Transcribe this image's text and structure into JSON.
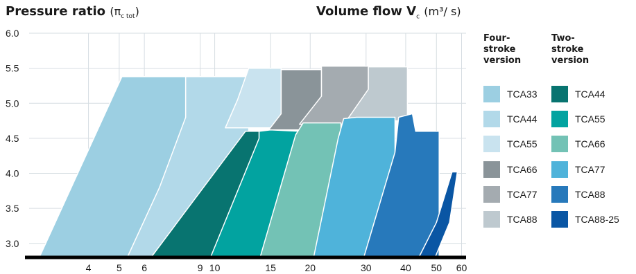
{
  "titles": {
    "left_main": "Pressure ratio",
    "left_paren_open": "(π",
    "left_sub": "c tot",
    "left_paren_close": ")",
    "right_main": "Volume flow V",
    "right_sub": "c",
    "right_unit": "(m³/ s)"
  },
  "legend": {
    "four_stroke_header": "Four-stroke version",
    "two_stroke_header": "Two-stroke version",
    "four_stroke": [
      {
        "label": "TCA33",
        "color": "#9ccfe2"
      },
      {
        "label": "TCA44",
        "color": "#b2d9e9"
      },
      {
        "label": "TCA55",
        "color": "#c9e3ef"
      },
      {
        "label": "TCA66",
        "color": "#8a9499"
      },
      {
        "label": "TCA77",
        "color": "#a4abb0"
      },
      {
        "label": "TCA88",
        "color": "#bec9cf"
      }
    ],
    "two_stroke": [
      {
        "label": "TCA44",
        "color": "#087470"
      },
      {
        "label": "TCA55",
        "color": "#02a3a0"
      },
      {
        "label": "TCA66",
        "color": "#73c2b5"
      },
      {
        "label": "TCA77",
        "color": "#4fb3da"
      },
      {
        "label": "TCA88",
        "color": "#2779bb"
      },
      {
        "label": "TCA88-25",
        "color": "#0a56a4"
      }
    ]
  },
  "chart_data": {
    "type": "area",
    "title": "Pressure ratio (πc tot) / Volume flow Vc (m³/ s)",
    "xlabel": "Volume flow Vc (m³/ s)",
    "ylabel": "Pressure ratio (πc tot)",
    "x_scale": "log",
    "xlim": [
      2.6,
      62
    ],
    "ylim": [
      2.8,
      6.0
    ],
    "x_ticks": [
      "4",
      "5",
      "6",
      "9",
      "10",
      "15",
      "20",
      "30",
      "40",
      "50",
      "60"
    ],
    "x_tick_values": [
      4,
      5,
      6,
      9,
      10,
      15,
      20,
      30,
      40,
      50,
      60
    ],
    "y_ticks": [
      "3.0",
      "3.5",
      "4.0",
      "4.5",
      "5.0",
      "5.5",
      "6.0"
    ],
    "y_tick_values": [
      3.0,
      3.5,
      4.0,
      4.5,
      5.0,
      5.5,
      6.0
    ],
    "grid": true,
    "legend_position": "right",
    "series": [
      {
        "name": "TCA33",
        "group": "four-stroke",
        "color": "#9ccfe2",
        "points": [
          [
            2.8,
            2.8
          ],
          [
            5.1,
            5.38
          ],
          [
            8.1,
            5.38
          ],
          [
            8.1,
            2.8
          ]
        ]
      },
      {
        "name": "TCA44",
        "group": "four-stroke",
        "color": "#b2d9e9",
        "points": [
          [
            5.3,
            2.8
          ],
          [
            6.7,
            3.8
          ],
          [
            8.1,
            4.8
          ],
          [
            8.1,
            5.38
          ],
          [
            12.8,
            5.38
          ],
          [
            12.8,
            2.8
          ]
        ]
      },
      {
        "name": "TCA55",
        "group": "four-stroke",
        "color": "#c9e3ef",
        "points": [
          [
            10.8,
            4.65
          ],
          [
            11.8,
            5.05
          ],
          [
            12.8,
            5.5
          ],
          [
            16.2,
            5.5
          ],
          [
            16.2,
            4.65
          ]
        ]
      },
      {
        "name": "TCA66",
        "group": "four-stroke",
        "color": "#8a9499",
        "points": [
          [
            14.8,
            4.62
          ],
          [
            16.2,
            4.85
          ],
          [
            16.2,
            5.48
          ],
          [
            21.7,
            5.48
          ],
          [
            21.7,
            4.62
          ]
        ]
      },
      {
        "name": "TCA77",
        "group": "four-stroke",
        "color": "#a4abb0",
        "points": [
          [
            18.5,
            4.7
          ],
          [
            21.7,
            5.1
          ],
          [
            21.7,
            5.53
          ],
          [
            30.5,
            5.53
          ],
          [
            30.5,
            4.7
          ]
        ]
      },
      {
        "name": "TCA88",
        "group": "four-stroke",
        "color": "#bec9cf",
        "points": [
          [
            26,
            4.75
          ],
          [
            30.5,
            5.2
          ],
          [
            30.5,
            5.52
          ],
          [
            40.5,
            5.52
          ],
          [
            40.5,
            4.75
          ]
        ]
      },
      {
        "name": "TCA44",
        "group": "two-stroke",
        "color": "#087470",
        "points": [
          [
            6.3,
            2.8
          ],
          [
            12.5,
            4.6
          ],
          [
            13.8,
            4.6
          ],
          [
            13.8,
            2.8
          ]
        ]
      },
      {
        "name": "TCA55",
        "group": "two-stroke",
        "color": "#02a3a0",
        "points": [
          [
            9.7,
            2.8
          ],
          [
            13.8,
            4.5
          ],
          [
            13.8,
            4.6
          ],
          [
            15,
            4.62
          ],
          [
            18.5,
            4.6
          ],
          [
            18.5,
            2.8
          ]
        ]
      },
      {
        "name": "TCA66",
        "group": "two-stroke",
        "color": "#73c2b5",
        "points": [
          [
            13.9,
            2.8
          ],
          [
            18,
            4.55
          ],
          [
            19,
            4.72
          ],
          [
            25,
            4.72
          ],
          [
            25,
            2.8
          ]
        ]
      },
      {
        "name": "TCA77",
        "group": "two-stroke",
        "color": "#4fb3da",
        "points": [
          [
            20.5,
            2.8
          ],
          [
            24.5,
            4.5
          ],
          [
            25.5,
            4.78
          ],
          [
            28,
            4.8
          ],
          [
            37,
            4.8
          ],
          [
            37,
            2.8
          ]
        ]
      },
      {
        "name": "TCA88",
        "group": "two-stroke",
        "color": "#2779bb",
        "points": [
          [
            29.5,
            2.8
          ],
          [
            37,
            4.3
          ],
          [
            38,
            4.8
          ],
          [
            42,
            4.85
          ],
          [
            43,
            4.6
          ],
          [
            51,
            4.6
          ],
          [
            51,
            2.8
          ]
        ]
      },
      {
        "name": "TCA88-25",
        "group": "two-stroke",
        "color": "#0a56a4",
        "points": [
          [
            44,
            2.8
          ],
          [
            50,
            3.3
          ],
          [
            56,
            4.02
          ],
          [
            58.2,
            4.02
          ],
          [
            55,
            3.3
          ],
          [
            49.5,
            2.8
          ]
        ]
      }
    ]
  }
}
